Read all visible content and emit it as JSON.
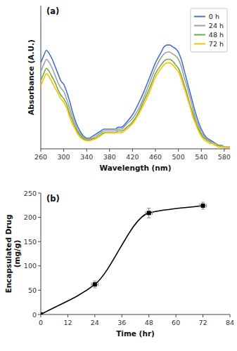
{
  "chart_data": [
    {
      "type": "line",
      "title": "(a)",
      "xlabel": "Wavelength (nm)",
      "ylabel": "Absorbance (A.U.)",
      "x": [
        260,
        265,
        270,
        275,
        280,
        285,
        290,
        295,
        300,
        305,
        310,
        315,
        320,
        325,
        330,
        335,
        340,
        345,
        350,
        355,
        360,
        365,
        370,
        375,
        380,
        385,
        390,
        395,
        400,
        410,
        420,
        430,
        440,
        450,
        460,
        470,
        475,
        480,
        485,
        490,
        495,
        500,
        505,
        510,
        515,
        520,
        525,
        530,
        535,
        540,
        545,
        550,
        555,
        560,
        565,
        570,
        575,
        580,
        585,
        590
      ],
      "series": [
        {
          "name": "0 h",
          "color": "#4472C4",
          "values": [
            0.48,
            0.52,
            0.55,
            0.53,
            0.5,
            0.46,
            0.42,
            0.38,
            0.36,
            0.32,
            0.27,
            0.21,
            0.16,
            0.12,
            0.09,
            0.07,
            0.06,
            0.06,
            0.07,
            0.08,
            0.09,
            0.1,
            0.11,
            0.11,
            0.11,
            0.11,
            0.11,
            0.12,
            0.12,
            0.15,
            0.19,
            0.25,
            0.32,
            0.4,
            0.48,
            0.54,
            0.57,
            0.58,
            0.58,
            0.57,
            0.56,
            0.54,
            0.5,
            0.44,
            0.38,
            0.32,
            0.26,
            0.2,
            0.15,
            0.11,
            0.08,
            0.06,
            0.05,
            0.04,
            0.03,
            0.02,
            0.02,
            0.01,
            0.01,
            0.01
          ]
        },
        {
          "name": "24 h",
          "color": "#A0A0A0",
          "values": [
            0.43,
            0.47,
            0.5,
            0.48,
            0.45,
            0.41,
            0.37,
            0.34,
            0.32,
            0.28,
            0.23,
            0.18,
            0.14,
            0.1,
            0.08,
            0.06,
            0.055,
            0.055,
            0.06,
            0.07,
            0.08,
            0.09,
            0.1,
            0.1,
            0.1,
            0.1,
            0.1,
            0.11,
            0.11,
            0.14,
            0.17,
            0.22,
            0.29,
            0.37,
            0.45,
            0.51,
            0.53,
            0.54,
            0.54,
            0.53,
            0.52,
            0.5,
            0.46,
            0.4,
            0.35,
            0.29,
            0.23,
            0.17,
            0.13,
            0.09,
            0.07,
            0.05,
            0.04,
            0.03,
            0.03,
            0.02,
            0.02,
            0.01,
            0.01,
            0.01
          ]
        },
        {
          "name": "48 h",
          "color": "#70AD47",
          "values": [
            0.38,
            0.42,
            0.45,
            0.43,
            0.4,
            0.37,
            0.33,
            0.3,
            0.28,
            0.25,
            0.2,
            0.16,
            0.12,
            0.09,
            0.07,
            0.055,
            0.05,
            0.05,
            0.055,
            0.06,
            0.07,
            0.08,
            0.09,
            0.09,
            0.09,
            0.09,
            0.09,
            0.1,
            0.1,
            0.12,
            0.15,
            0.2,
            0.27,
            0.34,
            0.42,
            0.47,
            0.49,
            0.5,
            0.5,
            0.49,
            0.47,
            0.45,
            0.41,
            0.36,
            0.31,
            0.25,
            0.2,
            0.15,
            0.11,
            0.08,
            0.06,
            0.05,
            0.04,
            0.03,
            0.02,
            0.02,
            0.01,
            0.01,
            0.01,
            0.01
          ]
        },
        {
          "name": "72 h",
          "color": "#FFC000",
          "values": [
            0.35,
            0.39,
            0.42,
            0.4,
            0.37,
            0.34,
            0.31,
            0.28,
            0.26,
            0.23,
            0.18,
            0.14,
            0.11,
            0.08,
            0.06,
            0.05,
            0.045,
            0.045,
            0.05,
            0.055,
            0.065,
            0.075,
            0.085,
            0.09,
            0.09,
            0.09,
            0.09,
            0.09,
            0.09,
            0.11,
            0.14,
            0.19,
            0.25,
            0.32,
            0.4,
            0.45,
            0.47,
            0.48,
            0.48,
            0.47,
            0.45,
            0.43,
            0.39,
            0.34,
            0.29,
            0.24,
            0.18,
            0.14,
            0.1,
            0.07,
            0.05,
            0.04,
            0.03,
            0.03,
            0.02,
            0.01,
            0.01,
            0.01,
            0.01,
            0.01
          ]
        }
      ],
      "xlim": [
        260,
        590
      ],
      "ylim": [
        0,
        0.8
      ],
      "xticks": [
        260,
        300,
        340,
        380,
        420,
        460,
        500,
        540,
        580
      ],
      "legend": "upper right",
      "tick_labels": "x",
      "grid": false
    },
    {
      "type": "line",
      "title": "(b)",
      "xlabel": "Time (hr)",
      "ylabel": "Encapsulated Drug\n(mg/g)",
      "x": [
        0,
        24,
        48,
        72
      ],
      "series": [
        {
          "color": "#000000",
          "marker": "square",
          "values": [
            0,
            62,
            209,
            224
          ],
          "y_errors": [
            0,
            7,
            10,
            7
          ],
          "x_errors": [
            0,
            1.5,
            1.5,
            1.5
          ]
        }
      ],
      "xlim": [
        0,
        84
      ],
      "ylim": [
        0,
        250
      ],
      "xticks": [
        0,
        12,
        24,
        36,
        48,
        60,
        72,
        84
      ],
      "yticks": [
        0,
        50,
        100,
        150,
        200,
        250
      ],
      "grid": false
    }
  ]
}
